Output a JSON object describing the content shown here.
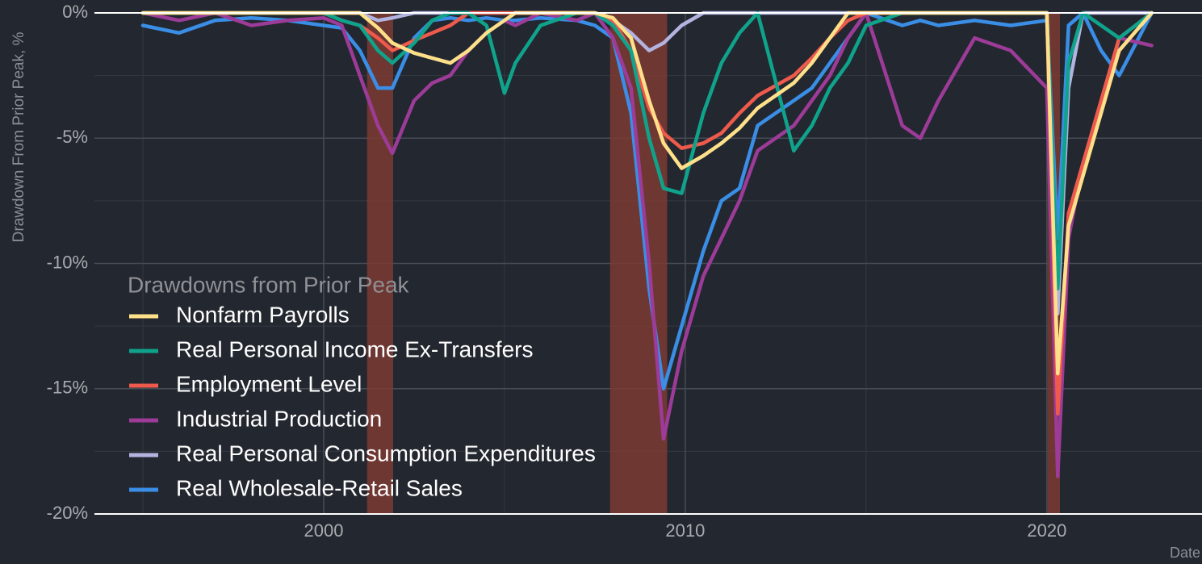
{
  "chart_data": {
    "type": "line",
    "y_label": "Drawdown From Prior Peak, %",
    "x_label": "Date",
    "legend_title": "Drawdowns from Prior Peak",
    "legend": "bottom-left",
    "grid": true,
    "xlim": [
      1993.66,
      2024.29
    ],
    "ylim": [
      -20,
      0
    ],
    "xticks": [
      2000,
      2010,
      2020
    ],
    "xminor": [
      1995,
      2005,
      2015
    ],
    "yticks": [
      {
        "value": 0,
        "label": "0%"
      },
      {
        "value": -5,
        "label": "-5%"
      },
      {
        "value": -10,
        "label": "-10%"
      },
      {
        "value": -15,
        "label": "-15%"
      },
      {
        "value": -20,
        "label": "-20%"
      }
    ],
    "yminor": [
      -2.5,
      -7.5,
      -12.5,
      -17.5
    ],
    "recessions": [
      [
        2001.2,
        2001.92
      ],
      [
        2007.92,
        2009.5
      ],
      [
        2020.02,
        2020.36
      ]
    ],
    "recession_color": "#7c3b33",
    "x": [
      1995,
      1996,
      1997,
      1998,
      1999,
      2000,
      2000.5,
      2001,
      2001.5,
      2001.9,
      2002.5,
      2003,
      2003.5,
      2004,
      2004.5,
      2005,
      2005.3,
      2006,
      2007,
      2007.5,
      2008,
      2008.5,
      2009,
      2009.4,
      2009.9,
      2010.5,
      2011,
      2011.5,
      2012,
      2013,
      2013.5,
      2014,
      2014.5,
      2015,
      2016,
      2016.5,
      2017,
      2018,
      2019,
      2020,
      2020.3,
      2020.6,
      2021,
      2021.5,
      2022,
      2022.9
    ],
    "series": [
      {
        "name": "Nonfarm Payrolls",
        "color": "#ffe08a",
        "values": [
          0,
          0,
          0,
          0,
          0,
          0,
          0,
          0,
          -0.6,
          -1.2,
          -1.6,
          -1.8,
          -2.0,
          -1.5,
          -0.8,
          -0.3,
          0,
          0,
          0,
          0,
          -0.2,
          -1.0,
          -3.5,
          -5.2,
          -6.2,
          -5.7,
          -5.2,
          -4.6,
          -3.8,
          -2.8,
          -2.0,
          -1.0,
          0,
          0,
          0,
          0,
          0,
          0,
          0,
          0,
          -14.4,
          -8.5,
          -6.5,
          -4.0,
          -1.5,
          0
        ]
      },
      {
        "name": "Real Personal Income Ex-Transfers",
        "color": "#0fa38c",
        "values": [
          0,
          0,
          0,
          0,
          0,
          0,
          -0.3,
          -0.5,
          -1.5,
          -2.0,
          -1.2,
          -0.3,
          0,
          0,
          -0.5,
          -3.2,
          -2.0,
          -0.5,
          0,
          0,
          -0.5,
          -1.5,
          -5.0,
          -7.0,
          -7.2,
          -4.0,
          -2.0,
          -0.8,
          0,
          -5.5,
          -4.5,
          -3.0,
          -2.0,
          -0.5,
          0,
          0,
          0,
          0,
          0,
          0,
          -11,
          -2,
          0,
          -0.5,
          -1,
          0
        ]
      },
      {
        "name": "Employment Level",
        "color": "#ee5a4c",
        "values": [
          0,
          0,
          0,
          0,
          0,
          0,
          -0.3,
          -0.5,
          -1.0,
          -1.5,
          -1.1,
          -0.8,
          -0.5,
          0,
          0,
          0,
          0,
          0,
          0,
          0,
          -0.3,
          -1.5,
          -3.8,
          -4.8,
          -5.4,
          -5.2,
          -4.8,
          -4.0,
          -3.3,
          -2.5,
          -1.8,
          -1.0,
          -0.3,
          0,
          0,
          0,
          0,
          0,
          0,
          0,
          -16,
          -8,
          -6,
          -3.5,
          -1,
          0
        ]
      },
      {
        "name": "Industrial Production",
        "color": "#9c3b98",
        "values": [
          0,
          -0.3,
          0,
          -0.5,
          -0.3,
          -0.2,
          -0.5,
          -2.5,
          -4.5,
          -5.6,
          -3.5,
          -2.8,
          -2.5,
          -1.5,
          -0.8,
          -0.3,
          -0.5,
          0,
          -0.3,
          0,
          -1,
          -3,
          -10,
          -17,
          -13.5,
          -10.5,
          -9,
          -7.5,
          -5.5,
          -4.5,
          -3.5,
          -2.5,
          -1,
          0,
          -4.5,
          -5,
          -3.5,
          -1,
          -1.5,
          -3,
          -18.5,
          -9,
          -6,
          -4,
          -1,
          -1.3
        ]
      },
      {
        "name": "Real Personal Consumption Expenditures",
        "color": "#b3b3e0",
        "values": [
          0,
          0,
          0,
          0,
          0,
          0,
          0,
          0,
          -0.3,
          -0.2,
          0,
          0,
          0,
          0,
          0,
          0,
          0,
          0,
          0,
          0,
          -0.3,
          -0.8,
          -1.5,
          -1.2,
          -0.5,
          0,
          0,
          0,
          0,
          0,
          0,
          0,
          0,
          0,
          0,
          0,
          0,
          0,
          0,
          0,
          -12,
          -3,
          0,
          0,
          0,
          0
        ]
      },
      {
        "name": "Real Wholesale-Retail Sales",
        "color": "#3a8ee6",
        "values": [
          -0.5,
          -0.8,
          -0.3,
          -0.2,
          -0.3,
          -0.5,
          -0.6,
          -1.5,
          -3,
          -3,
          -1,
          -0.3,
          -0.2,
          -0.3,
          -0.2,
          -0.3,
          -0.3,
          -0.2,
          -0.3,
          -0.5,
          -1,
          -4,
          -11,
          -15,
          -12.5,
          -9.5,
          -7.5,
          -7,
          -4.5,
          -3.5,
          -3,
          -2,
          -1,
          0,
          -0.5,
          -0.3,
          -0.5,
          -0.3,
          -0.5,
          -0.3,
          -9,
          -0.5,
          0,
          -1.5,
          -2.5,
          0
        ]
      }
    ]
  }
}
